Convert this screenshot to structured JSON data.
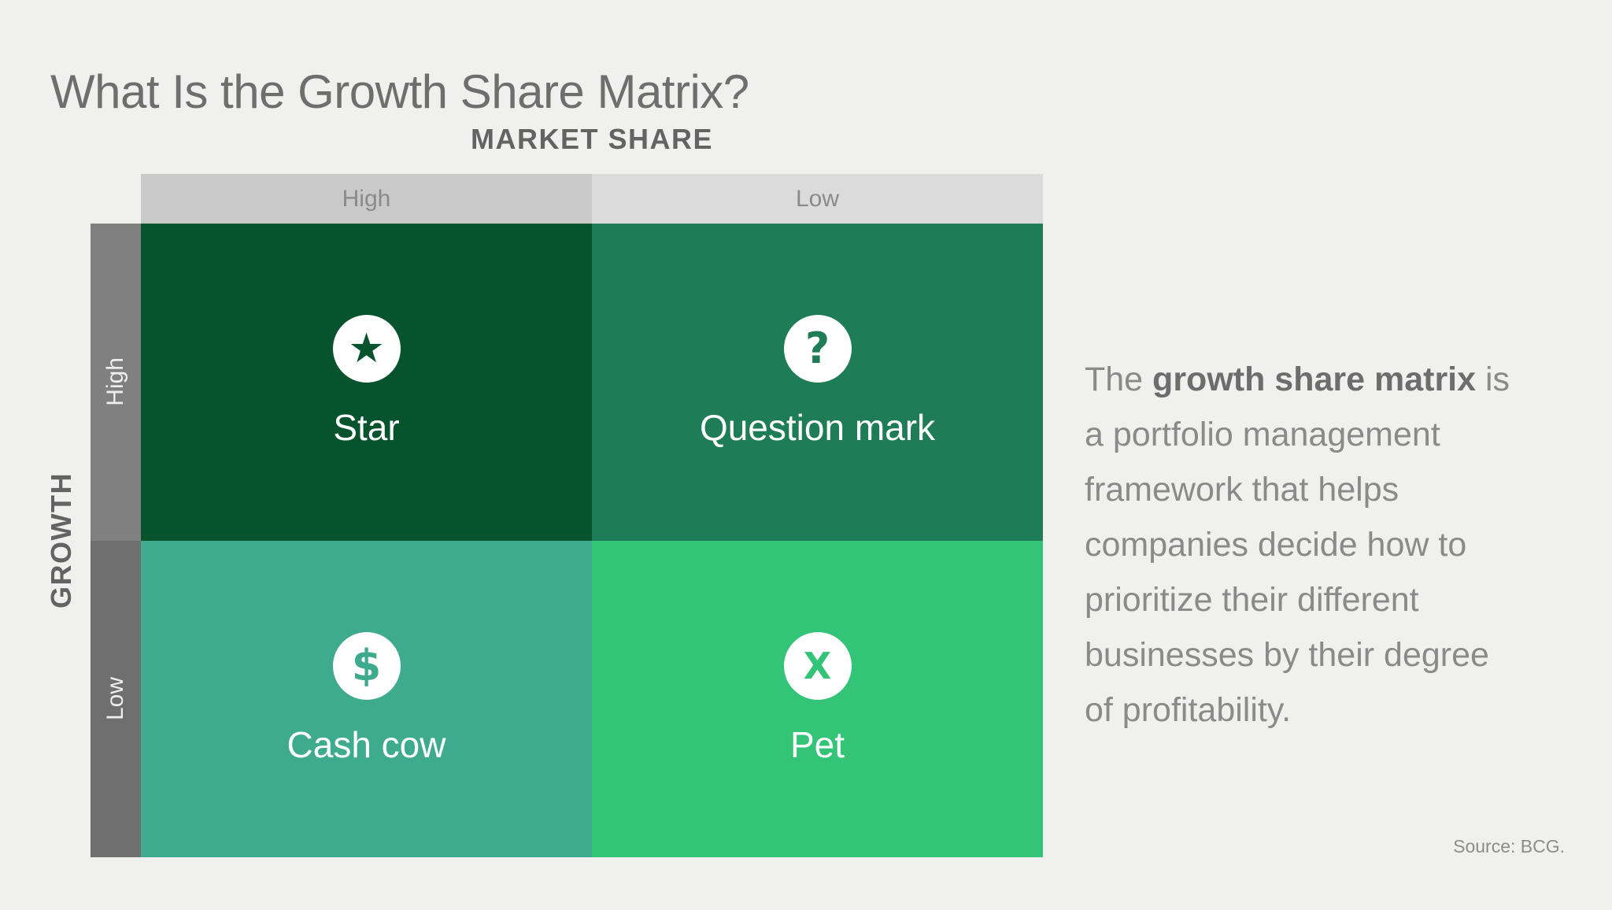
{
  "page": {
    "title": "What Is the Growth Share Matrix?",
    "source": "Source: BCG."
  },
  "matrix": {
    "x_axis": {
      "label": "MARKET SHARE",
      "high": "High",
      "low": "Low"
    },
    "y_axis": {
      "label": "GROWTH",
      "high": "High",
      "low": "Low"
    },
    "quadrants": [
      {
        "name": "Star",
        "icon": "star-icon",
        "glyph": "★",
        "color": "#07532e",
        "market_share": "High",
        "growth": "High"
      },
      {
        "name": "Question mark",
        "icon": "question-mark-icon",
        "glyph": "?",
        "color": "#1e7d57",
        "market_share": "Low",
        "growth": "High"
      },
      {
        "name": "Cash cow",
        "icon": "dollar-icon",
        "glyph": "$",
        "color": "#3fab8e",
        "market_share": "High",
        "growth": "Low"
      },
      {
        "name": "Pet",
        "icon": "x-icon",
        "glyph": "X",
        "color": "#33c478",
        "market_share": "Low",
        "growth": "Low"
      }
    ]
  },
  "description": {
    "lead": "The ",
    "bold": "growth share matrix",
    "rest": " is a portfolio management framework that helps companies decide how to prioritize their different businesses by their degree of profitability."
  },
  "colors": {
    "background": "#f0f0ee",
    "title_text": "#6e6e6e",
    "axis_label_text": "#636363",
    "column_header_high_bg": "#c9c9c9",
    "column_header_low_bg": "#dbdbdb",
    "column_header_text": "#8a8a8a",
    "row_header_high_bg": "#808080",
    "row_header_low_bg": "#6f6f6f",
    "row_header_text": "#efefef",
    "icon_circle_bg": "#ffffff",
    "quadrant_label_text": "#ffffff",
    "description_text": "#8a8a8a",
    "description_bold_text": "#6d6d6d",
    "source_text": "#8c8c8c"
  }
}
